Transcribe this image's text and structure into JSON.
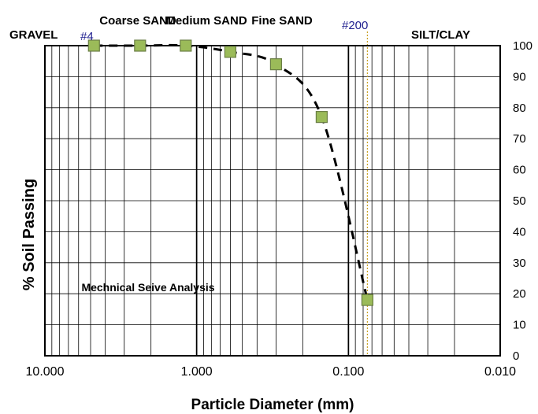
{
  "chart_data": {
    "type": "scatter",
    "title": "",
    "xlabel": "Particle Diameter (mm)",
    "ylabel": "% Soil Passing",
    "x_scale": "log",
    "x_reversed": true,
    "xlim": [
      10,
      0.01
    ],
    "ylim": [
      0,
      100
    ],
    "grid": true,
    "x_ticks": [
      "10.000",
      "1.000",
      "0.100",
      "0.010"
    ],
    "y_ticks": [
      "0",
      "10",
      "20",
      "30",
      "40",
      "50",
      "60",
      "70",
      "80",
      "90",
      "100"
    ],
    "y_axis_side": "right",
    "series": [
      {
        "marker": "square",
        "color": "#9bbb59",
        "x": [
          4.75,
          2.36,
          1.18,
          0.6,
          0.3,
          0.15,
          0.075
        ],
        "y": [
          100,
          100,
          100,
          98,
          94,
          77,
          18
        ]
      }
    ],
    "trendline": {
      "style": "dashed",
      "color": "#000000"
    },
    "sieve_markers": [
      {
        "label": "#4",
        "x": 4.75
      },
      {
        "label": "#200",
        "x": 0.075
      }
    ],
    "zones": [
      {
        "label": "GRAVEL"
      },
      {
        "label": "Coarse SAND"
      },
      {
        "label": "Medium SAND"
      },
      {
        "label": "Fine SAND"
      },
      {
        "label": "SILT/CLAY"
      }
    ],
    "annotation": "Mechnical Seive Analysis"
  }
}
